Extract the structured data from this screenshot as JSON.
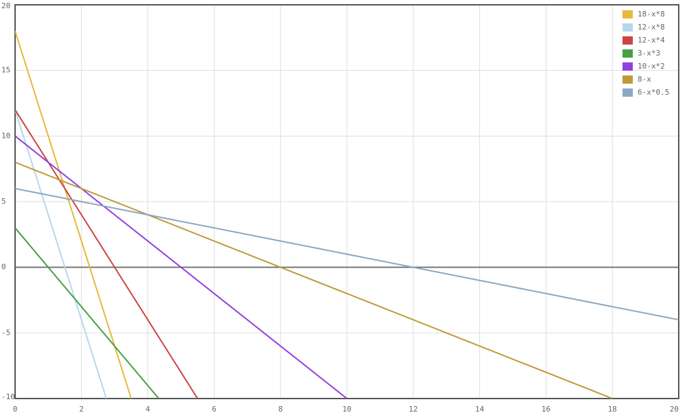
{
  "chart_data": {
    "type": "line",
    "xlim": [
      0,
      20
    ],
    "ylim": [
      -10,
      20
    ],
    "xticks": [
      0,
      2,
      4,
      6,
      8,
      10,
      12,
      14,
      16,
      18,
      20
    ],
    "yticks": [
      -10,
      -5,
      0,
      5,
      10,
      15,
      20
    ],
    "grid": true,
    "legend": "top-right",
    "series": [
      {
        "name": "18-x*8",
        "color": "#e6b83d",
        "x": [
          0,
          3.5
        ],
        "values": [
          18,
          -10
        ]
      },
      {
        "name": "12-x*8",
        "color": "#b5d7ee",
        "x": [
          0,
          2.75
        ],
        "values": [
          12,
          -10
        ]
      },
      {
        "name": "12-x*4",
        "color": "#cc4444",
        "x": [
          0,
          5.5
        ],
        "values": [
          12,
          -10
        ]
      },
      {
        "name": "3-x*3",
        "color": "#44a044",
        "x": [
          0,
          4.33
        ],
        "values": [
          3,
          -10
        ]
      },
      {
        "name": "10-x*2",
        "color": "#9040e0",
        "x": [
          0,
          10
        ],
        "values": [
          10,
          -10
        ]
      },
      {
        "name": "8-x",
        "color": "#c09a3a",
        "x": [
          0,
          18
        ],
        "values": [
          8,
          -10
        ]
      },
      {
        "name": "6-x*0.5",
        "color": "#8aa8c0",
        "x": [
          0,
          20
        ],
        "values": [
          6,
          -4
        ]
      }
    ]
  }
}
